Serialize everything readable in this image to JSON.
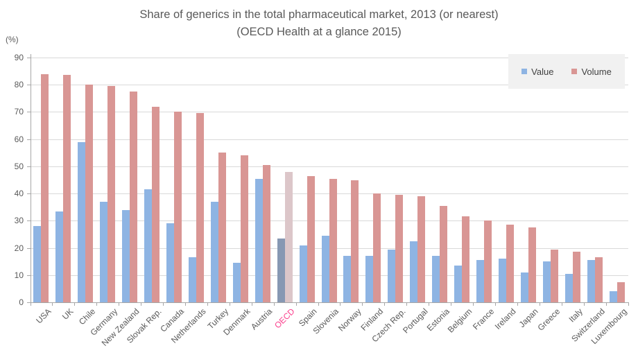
{
  "colors": {
    "value_bar": "#8eb4e3",
    "volume_bar": "#d99694",
    "highlight_value_bar": "#8798b3",
    "highlight_volume_bar": "#dcc6c9",
    "highlight_label": "#fb3e8c",
    "text": "#595959",
    "legend_text": "#404040",
    "gridline": "#d9d9d9",
    "axis": "#a6a6a6",
    "legend_background": "#f1f1f1"
  },
  "chart_data": {
    "type": "bar",
    "title": "Share of generics in the total pharmaceutical market, 2013 (or nearest)",
    "subtitle": "(OECD Health at a glance 2015)",
    "ylabel": "(%)",
    "ylim": [
      0,
      90
    ],
    "y_ticks": [
      0,
      10,
      20,
      30,
      40,
      50,
      60,
      70,
      80,
      90
    ],
    "grid": true,
    "legend_position": "top-right",
    "highlight_category": "OECD",
    "categories": [
      "USA",
      "UK",
      "Chile",
      "Germany",
      "New Zealand",
      "Slovak Rep.",
      "Canada",
      "Netherlands",
      "Turkey",
      "Denmark",
      "Austria",
      "OECD",
      "Spain",
      "Slovenia",
      "Norway",
      "Finland",
      "Czech Rep.",
      "Portugal",
      "Estonia",
      "Belgium",
      "France",
      "Ireland",
      "Japan",
      "Greece",
      "Italy",
      "Switzerland",
      "Luxembourg"
    ],
    "series": [
      {
        "name": "Value",
        "values": [
          28,
          33.5,
          59,
          37,
          34,
          41.5,
          29,
          16.5,
          37,
          14.5,
          45.5,
          23.5,
          21,
          24.5,
          17,
          17,
          19.5,
          22.5,
          17,
          13.5,
          15.5,
          16,
          11,
          15,
          10.5,
          15.5,
          4
        ]
      },
      {
        "name": "Volume",
        "values": [
          84,
          83.5,
          80,
          79.5,
          77.5,
          72,
          70,
          69.5,
          55,
          54,
          50.5,
          48,
          46.5,
          45.5,
          45,
          40,
          39.5,
          39,
          35.5,
          31.5,
          30,
          28.5,
          27.5,
          19.5,
          18.5,
          16.5,
          7.5
        ]
      }
    ]
  }
}
